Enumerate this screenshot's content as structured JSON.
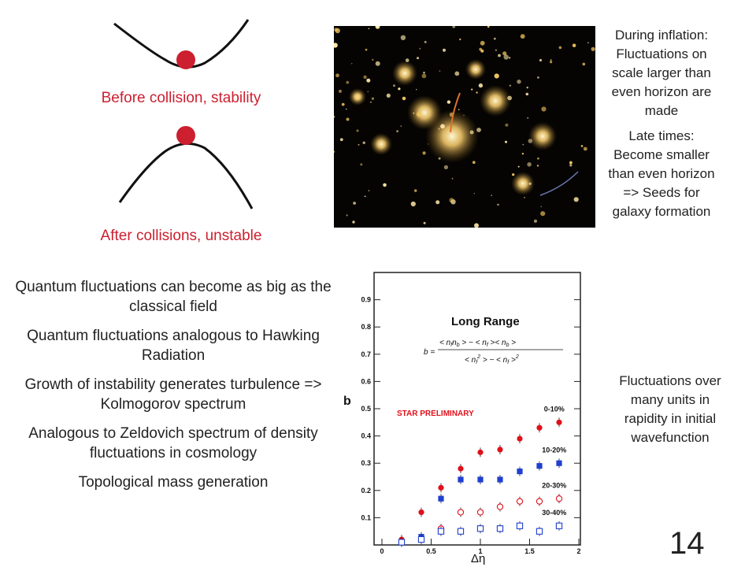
{
  "potentials": {
    "before_label": "Before collision, stability",
    "after_label": "After collisions, unstable"
  },
  "bullets": [
    "Quantum fluctuations can become as big as the classical field",
    "Quantum fluctuations analogous to Hawking Radiation",
    "Growth of instability generates turbulence => Kolmogorov spectrum",
    "Analogous to  Zeldovich spectrum of density fluctuations in cosmology",
    "Topological mass generation"
  ],
  "side_notes": {
    "inflation": "During inflation: Fluctuations on scale larger than even horizon are made",
    "late_times": "Late times: Become smaller than even horizon => Seeds for galaxy formation",
    "rapidity": "Fluctuations over many units in rapidity in initial wavefunction"
  },
  "page_number": "14",
  "colors": {
    "accent_red": "#cc1f2f",
    "series_blue": "#1f3fd0"
  },
  "chart_data": {
    "type": "scatter",
    "title": "Long Range",
    "formula": "b = (<n_f n_b> − <n_f><n_b>) / (<n_f²> − <n_f>²)",
    "annotation": "STAR PRELIMINARY",
    "xlabel": "Δη",
    "ylabel": "b",
    "xlim": [
      0,
      2
    ],
    "ylim": [
      0,
      1
    ],
    "x_ticks": [
      0,
      0.5,
      1,
      1.5,
      2
    ],
    "x_tick_labels": [
      "0",
      "0.5",
      "1",
      "1.5",
      "2"
    ],
    "y_ticks": [
      0.1,
      0.2,
      0.3,
      0.4,
      0.5,
      0.6,
      0.7,
      0.8,
      0.9
    ],
    "y_tick_labels": [
      "0.1",
      "0.2",
      "0.3",
      "0.4",
      "0.5",
      "0.6",
      "0.7",
      "0.8",
      "0.9"
    ],
    "series": [
      {
        "name": "0-10%",
        "marker": "filled-circle",
        "color": "#e0101a",
        "x": [
          0.2,
          0.4,
          0.6,
          0.8,
          1.0,
          1.2,
          1.4,
          1.6,
          1.8
        ],
        "y": [
          0.02,
          0.12,
          0.21,
          0.28,
          0.34,
          0.35,
          0.39,
          0.43,
          0.45
        ]
      },
      {
        "name": "10-20%",
        "marker": "filled-square",
        "color": "#1f3fd0",
        "x": [
          0.2,
          0.4,
          0.6,
          0.8,
          1.0,
          1.2,
          1.4,
          1.6,
          1.8
        ],
        "y": [
          0.01,
          0.03,
          0.17,
          0.24,
          0.24,
          0.24,
          0.27,
          0.29,
          0.3
        ]
      },
      {
        "name": "20-30%",
        "marker": "open-circle",
        "color": "#e0101a",
        "x": [
          0.6,
          0.8,
          1.0,
          1.2,
          1.4,
          1.6,
          1.8
        ],
        "y": [
          0.06,
          0.12,
          0.12,
          0.14,
          0.16,
          0.16,
          0.17
        ]
      },
      {
        "name": "30-40%",
        "marker": "open-square",
        "color": "#1f3fd0",
        "x": [
          0.2,
          0.4,
          0.6,
          0.8,
          1.0,
          1.2,
          1.4,
          1.6,
          1.8
        ],
        "y": [
          0.01,
          0.02,
          0.05,
          0.05,
          0.06,
          0.06,
          0.07,
          0.05,
          0.07
        ]
      }
    ]
  }
}
